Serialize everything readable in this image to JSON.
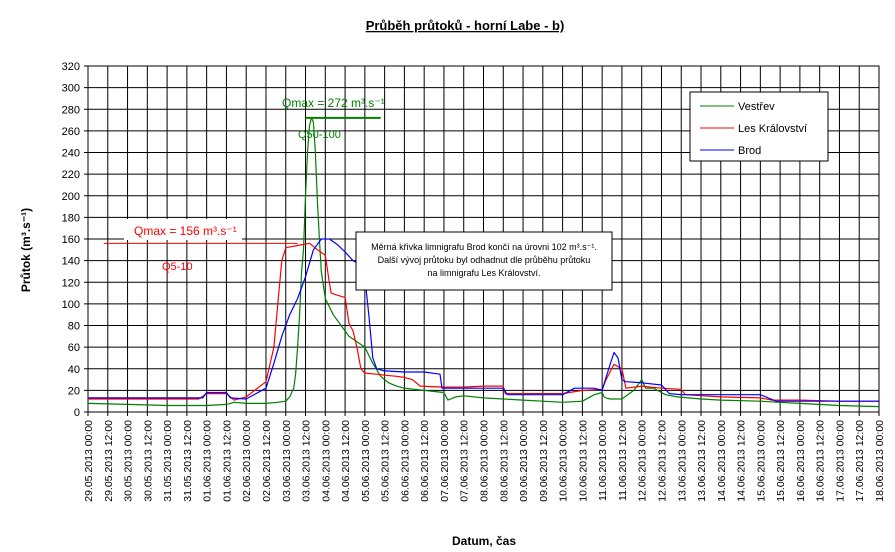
{
  "chart_data": {
    "type": "line",
    "title": "Průběh průtoků - horní Labe - b)",
    "xlabel": "Datum, čas",
    "ylabel": "Průtok (m³.s⁻¹)",
    "ylim": [
      0,
      320
    ],
    "yticks": [
      0,
      20,
      40,
      60,
      80,
      100,
      120,
      140,
      160,
      180,
      200,
      220,
      240,
      260,
      280,
      300,
      320
    ],
    "xticks": [
      "29.05.2013 00:00",
      "29.05.2013 12:00",
      "30.05.2013 00:00",
      "30.05.2013 12:00",
      "31.05.2013 00:00",
      "31.05.2013 12:00",
      "01.06.2013 00:00",
      "01.06.2013 12:00",
      "02.06.2013 00:00",
      "02.06.2013 12:00",
      "03.06.2013 00:00",
      "03.06.2013 12:00",
      "04.06.2013 00:00",
      "04.06.2013 12:00",
      "05.06.2013 00:00",
      "05.06.2013 12:00",
      "06.06.2013 00:00",
      "06.06.2013 12:00",
      "07.06.2013 00:00",
      "07.06.2013 12:00",
      "08.06.2013 00:00",
      "08.06.2013 12:00",
      "09.06.2013 00:00",
      "09.06.2013 12:00",
      "10.06.2013 00:00",
      "10.06.2013 12:00",
      "11.06.2013 00:00",
      "11.06.2013 12:00",
      "12.06.2013 00:00",
      "12.06.2013 12:00",
      "13.06.2013 00:00",
      "13.06.2013 12:00",
      "14.06.2013 00:00",
      "14.06.2013 12:00",
      "15.06.2013 00:00",
      "15.06.2013 12:00",
      "16.06.2013 00:00",
      "16.06.2013 12:00",
      "17.06.2013 00:00",
      "17.06.2013 12:00",
      "18.06.2013 00:00"
    ],
    "x_unit": "days since 29.05.2013 00:00",
    "grid": true,
    "legend_position": "top-right",
    "series": [
      {
        "name": "Vestřev",
        "color": "#008000",
        "points": [
          [
            0,
            8
          ],
          [
            1,
            7
          ],
          [
            2,
            6
          ],
          [
            3,
            6
          ],
          [
            3.5,
            7
          ],
          [
            3.7,
            9
          ],
          [
            4,
            8
          ],
          [
            4.5,
            8
          ],
          [
            4.8,
            9
          ],
          [
            5,
            10
          ],
          [
            5.1,
            14
          ],
          [
            5.2,
            22
          ],
          [
            5.25,
            35
          ],
          [
            5.3,
            60
          ],
          [
            5.35,
            90
          ],
          [
            5.4,
            130
          ],
          [
            5.45,
            150
          ],
          [
            5.5,
            200
          ],
          [
            5.55,
            240
          ],
          [
            5.6,
            265
          ],
          [
            5.65,
            272
          ],
          [
            5.7,
            268
          ],
          [
            5.75,
            240
          ],
          [
            5.8,
            195
          ],
          [
            5.85,
            160
          ],
          [
            5.9,
            130
          ],
          [
            6.0,
            105
          ],
          [
            6.2,
            90
          ],
          [
            6.4,
            80
          ],
          [
            6.6,
            70
          ],
          [
            6.8,
            65
          ],
          [
            7.0,
            60
          ],
          [
            7.2,
            45
          ],
          [
            7.4,
            33
          ],
          [
            7.6,
            27
          ],
          [
            7.8,
            24
          ],
          [
            8,
            22
          ],
          [
            8.5,
            20
          ],
          [
            9,
            18
          ],
          [
            9.1,
            11
          ],
          [
            9.3,
            14
          ],
          [
            9.5,
            15
          ],
          [
            10,
            13
          ],
          [
            10.5,
            12
          ],
          [
            11,
            11
          ],
          [
            11.5,
            10
          ],
          [
            12,
            9
          ],
          [
            12.5,
            10
          ],
          [
            12.8,
            16
          ],
          [
            13,
            18
          ],
          [
            13.05,
            14
          ],
          [
            13.1,
            13
          ],
          [
            13.2,
            12
          ],
          [
            13.5,
            12
          ],
          [
            13.8,
            20
          ],
          [
            14,
            30
          ],
          [
            14.1,
            22
          ],
          [
            14.3,
            22
          ],
          [
            14.6,
            16
          ],
          [
            14.9,
            14
          ],
          [
            15.5,
            12
          ],
          [
            16,
            11
          ],
          [
            17,
            10
          ],
          [
            18,
            8
          ],
          [
            19,
            6
          ],
          [
            20,
            5
          ]
        ]
      },
      {
        "name": "Les Království",
        "color": "#ff0000",
        "points": [
          [
            0,
            12
          ],
          [
            1,
            12
          ],
          [
            2,
            12
          ],
          [
            2.8,
            12
          ],
          [
            3,
            17
          ],
          [
            3.5,
            17
          ],
          [
            3.7,
            11
          ],
          [
            4,
            14
          ],
          [
            4.5,
            28
          ],
          [
            4.7,
            60
          ],
          [
            4.8,
            100
          ],
          [
            4.9,
            140
          ],
          [
            5.0,
            152
          ],
          [
            5.3,
            154
          ],
          [
            5.6,
            156
          ],
          [
            5.8,
            150
          ],
          [
            6.0,
            145
          ],
          [
            6.1,
            120
          ],
          [
            6.15,
            110
          ],
          [
            6.3,
            108
          ],
          [
            6.5,
            106
          ],
          [
            6.6,
            82
          ],
          [
            6.7,
            75
          ],
          [
            6.8,
            60
          ],
          [
            6.9,
            40
          ],
          [
            7,
            36
          ],
          [
            7.3,
            35
          ],
          [
            7.5,
            34
          ],
          [
            7.8,
            33
          ],
          [
            8,
            32
          ],
          [
            8.2,
            30
          ],
          [
            8.4,
            24
          ],
          [
            9,
            23
          ],
          [
            9.5,
            23
          ],
          [
            10,
            24
          ],
          [
            10.5,
            24
          ],
          [
            10.55,
            17
          ],
          [
            11,
            17
          ],
          [
            12,
            17
          ],
          [
            12.5,
            20
          ],
          [
            13,
            21
          ],
          [
            13.1,
            30
          ],
          [
            13.3,
            44
          ],
          [
            13.5,
            40
          ],
          [
            13.6,
            22
          ],
          [
            14,
            24
          ],
          [
            14.5,
            22
          ],
          [
            15,
            21
          ],
          [
            15.1,
            16
          ],
          [
            16,
            14
          ],
          [
            17,
            13
          ],
          [
            17.3,
            11
          ],
          [
            18,
            11
          ],
          [
            19,
            10
          ],
          [
            20,
            10
          ]
        ]
      },
      {
        "name": "Brod",
        "color": "#0000ff",
        "points": [
          [
            0,
            13
          ],
          [
            1,
            13
          ],
          [
            2,
            13
          ],
          [
            2.9,
            13
          ],
          [
            3.0,
            18
          ],
          [
            3.5,
            18
          ],
          [
            3.6,
            13
          ],
          [
            4,
            12
          ],
          [
            4.5,
            22
          ],
          [
            4.7,
            45
          ],
          [
            4.9,
            70
          ],
          [
            5.1,
            90
          ],
          [
            5.3,
            105
          ],
          [
            5.5,
            125
          ],
          [
            5.7,
            150
          ],
          [
            5.9,
            160
          ],
          [
            6.1,
            160
          ],
          [
            6.3,
            155
          ],
          [
            6.5,
            148
          ],
          [
            6.7,
            140
          ],
          [
            6.9,
            136
          ],
          [
            7.0,
            125
          ],
          [
            7.1,
            90
          ],
          [
            7.2,
            50
          ],
          [
            7.3,
            40
          ],
          [
            7.5,
            38
          ],
          [
            8,
            37
          ],
          [
            8.5,
            37
          ],
          [
            8.9,
            35
          ],
          [
            8.95,
            22
          ],
          [
            9.5,
            22
          ],
          [
            10,
            22
          ],
          [
            10.5,
            22
          ],
          [
            10.6,
            16
          ],
          [
            11,
            16
          ],
          [
            11.5,
            16
          ],
          [
            12,
            16
          ],
          [
            12.3,
            22
          ],
          [
            12.8,
            22
          ],
          [
            13,
            20
          ],
          [
            13.2,
            44
          ],
          [
            13.3,
            55
          ],
          [
            13.4,
            50
          ],
          [
            13.5,
            30
          ],
          [
            13.6,
            28
          ],
          [
            14,
            27
          ],
          [
            14.5,
            25
          ],
          [
            14.7,
            17
          ],
          [
            15,
            16
          ],
          [
            16,
            16
          ],
          [
            17,
            16
          ],
          [
            17.4,
            10
          ],
          [
            18,
            10
          ],
          [
            19,
            10
          ],
          [
            20,
            10
          ]
        ]
      }
    ],
    "annotations": {
      "qmax_vestrev": {
        "label": "Qmax = 272 m³.s⁻¹",
        "value": 272,
        "x_start": 5.5,
        "x_end": 7.4
      },
      "q50_100": {
        "label": "Q50-100",
        "value": 272
      },
      "qmax_les": {
        "label": "Qmax = 156 m³.s⁻¹",
        "value": 156,
        "x_start": 0.4,
        "x_end": 5.3
      },
      "q5_10": {
        "label": "Q5-10",
        "value": 156
      },
      "note_lines": [
        "Měrná křivka limnigrafu Brod končí na úrovni 102 m³.s⁻¹.",
        "Další vývoj průtoku byl odhadnut dle průběhu průtoku",
        "na limnigrafu Les Království."
      ]
    }
  }
}
